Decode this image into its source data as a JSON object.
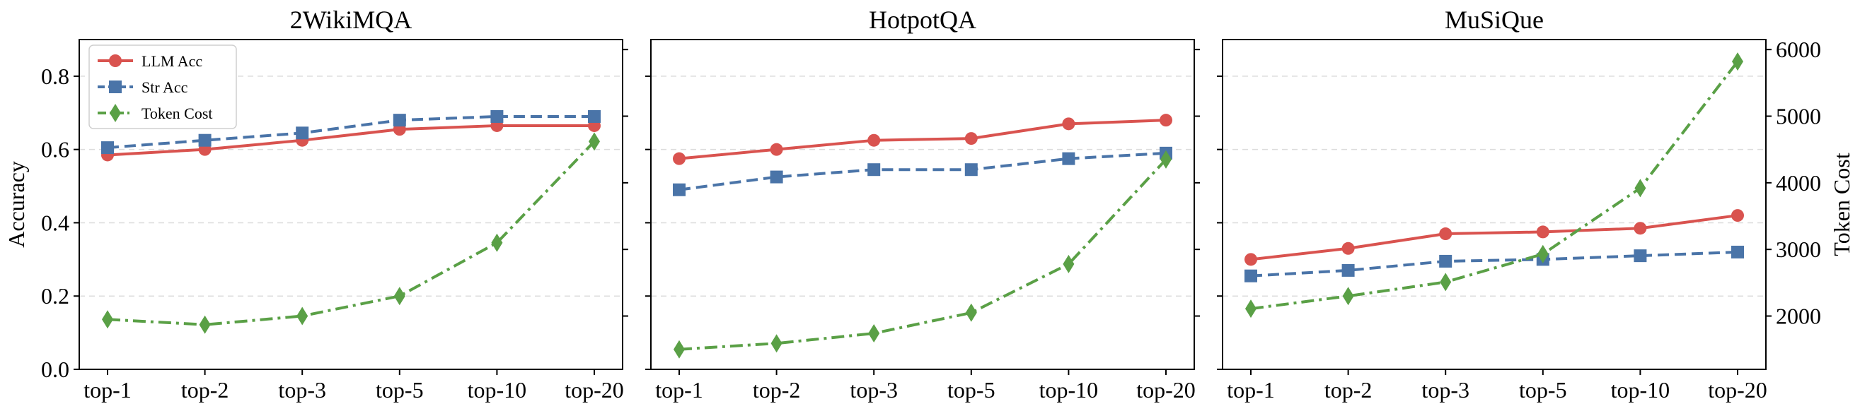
{
  "chart_data": {
    "type": "line",
    "categories": [
      "top-1",
      "top-2",
      "top-3",
      "top-5",
      "top-10",
      "top-20"
    ],
    "ylabel_left": "Accuracy",
    "ylabel_right": "Token Cost",
    "ylim_left": [
      0.0,
      0.9
    ],
    "yticks_left": [
      0.0,
      0.2,
      0.4,
      0.6,
      0.8
    ],
    "ylim_right": [
      1200,
      6150
    ],
    "yticks_right": [
      2000,
      3000,
      4000,
      5000,
      6000
    ],
    "grid": "horizontal dashed (accuracy axis)",
    "legend_position": "top-left of first panel",
    "legend": [
      {
        "label": "LLM Acc",
        "color": "#d9534f",
        "marker": "circle",
        "line": "solid"
      },
      {
        "label": "Str Acc",
        "color": "#4a74a8",
        "marker": "square",
        "line": "dashed"
      },
      {
        "label": "Token Cost",
        "color": "#5aa046",
        "marker": "diamond",
        "line": "dashdot"
      }
    ],
    "panels": [
      {
        "title": "2WikiMQA",
        "series": [
          {
            "name": "LLM Acc",
            "values": [
              0.585,
              0.6,
              0.625,
              0.655,
              0.665,
              0.665
            ]
          },
          {
            "name": "Str Acc",
            "values": [
              0.605,
              0.625,
              0.645,
              0.68,
              0.69,
              0.69
            ]
          },
          {
            "name": "Token Cost",
            "values": [
              1950,
              1870,
              2000,
              2300,
              3100,
              4620
            ]
          }
        ]
      },
      {
        "title": "HotpotQA",
        "series": [
          {
            "name": "LLM Acc",
            "values": [
              0.575,
              0.6,
              0.625,
              0.63,
              0.67,
              0.68
            ]
          },
          {
            "name": "Str Acc",
            "values": [
              0.49,
              0.525,
              0.545,
              0.545,
              0.575,
              0.59
            ]
          },
          {
            "name": "Token Cost",
            "values": [
              1500,
              1590,
              1740,
              2050,
              2780,
              4350
            ]
          }
        ]
      },
      {
        "title": "MuSiQue",
        "series": [
          {
            "name": "LLM Acc",
            "values": [
              0.3,
              0.33,
              0.37,
              0.375,
              0.385,
              0.42
            ]
          },
          {
            "name": "Str Acc",
            "values": [
              0.255,
              0.27,
              0.295,
              0.3,
              0.31,
              0.32
            ]
          },
          {
            "name": "Token Cost",
            "values": [
              2110,
              2300,
              2510,
              2930,
              3920,
              5820
            ]
          }
        ]
      }
    ]
  }
}
